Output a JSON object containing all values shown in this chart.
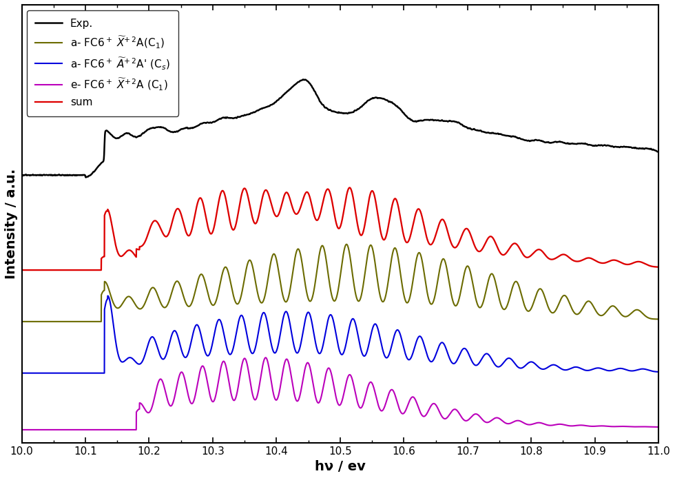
{
  "title": "",
  "xlabel": "hν / ev",
  "ylabel": "Intensity / a.u.",
  "xlim": [
    10.0,
    11.0
  ],
  "ylim": [
    -0.05,
    1.65
  ],
  "xticks": [
    10.0,
    10.1,
    10.2,
    10.3,
    10.4,
    10.5,
    10.6,
    10.7,
    10.8,
    10.9,
    11.0
  ],
  "xtick_labels": [
    "10.0",
    "10.1",
    "10.2",
    "10.3",
    "10.4",
    "10.5",
    "10.6",
    "10.7",
    "10.8",
    "10.9",
    "11.0"
  ],
  "colors": {
    "exp": "#000000",
    "olive": "#6b6b00",
    "blue": "#0000dd",
    "magenta": "#bb00bb",
    "red": "#dd0000"
  },
  "legend_labels": {
    "exp": "Exp.",
    "olive": "a- FC6$^+$ $\\widetilde{X}$$^{+\\,2}$A(C$_1$)",
    "blue": "a- FC6$^+$ $\\widetilde{A}$$^{+\\,2}$A' (C$_s$)",
    "magenta": "e- FC6$^+$ $\\widetilde{X}$$^{+\\,2}$A (C$_1$)",
    "red": "sum"
  }
}
